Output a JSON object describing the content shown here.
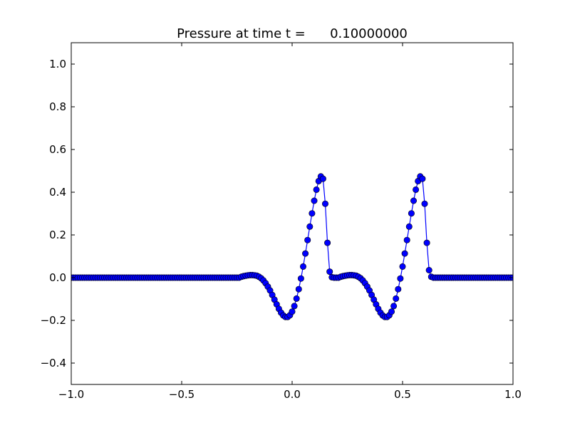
{
  "chart_data": {
    "type": "line",
    "title": "Pressure at time t =      0.10000000",
    "xlabel": "",
    "ylabel": "",
    "xlim": [
      -1.0,
      1.0
    ],
    "ylim": [
      -0.5,
      1.1
    ],
    "grid": false,
    "xticks": [
      -1.0,
      -0.5,
      0.0,
      0.5,
      1.0
    ],
    "xtick_labels": [
      "−1.0",
      "−0.5",
      "0.0",
      "0.5",
      "1.0"
    ],
    "yticks": [
      -0.4,
      -0.2,
      0.0,
      0.2,
      0.4,
      0.6,
      0.8,
      1.0
    ],
    "ytick_labels": [
      "−0.4",
      "−0.2",
      "0.0",
      "0.2",
      "0.4",
      "0.6",
      "0.8",
      "1.0"
    ],
    "series": [
      {
        "color": "#0000ff",
        "marker": "circle",
        "line_color": "#0000ff",
        "points": [
          [
            -0.23,
            0.004
          ],
          [
            -0.22,
            0.007
          ],
          [
            -0.21,
            0.009
          ],
          [
            -0.2,
            0.011
          ],
          [
            -0.19,
            0.012
          ],
          [
            -0.18,
            0.012
          ],
          [
            -0.17,
            0.011
          ],
          [
            -0.16,
            0.009
          ],
          [
            -0.15,
            0.004
          ],
          [
            -0.14,
            -0.003
          ],
          [
            -0.13,
            -0.013
          ],
          [
            -0.12,
            -0.026
          ],
          [
            -0.11,
            -0.042
          ],
          [
            -0.1,
            -0.06
          ],
          [
            -0.09,
            -0.081
          ],
          [
            -0.08,
            -0.103
          ],
          [
            -0.07,
            -0.125
          ],
          [
            -0.06,
            -0.146
          ],
          [
            -0.05,
            -0.164
          ],
          [
            -0.04,
            -0.177
          ],
          [
            -0.03,
            -0.184
          ],
          [
            -0.02,
            -0.184
          ],
          [
            -0.01,
            -0.176
          ],
          [
            0.0,
            -0.159
          ],
          [
            0.01,
            -0.133
          ],
          [
            0.02,
            -0.098
          ],
          [
            0.03,
            -0.054
          ],
          [
            0.04,
            -0.004
          ],
          [
            0.05,
            0.052
          ],
          [
            0.06,
            0.113
          ],
          [
            0.07,
            0.176
          ],
          [
            0.08,
            0.239
          ],
          [
            0.09,
            0.301
          ],
          [
            0.1,
            0.36
          ],
          [
            0.11,
            0.412
          ],
          [
            0.12,
            0.452
          ],
          [
            0.13,
            0.474
          ],
          [
            0.14,
            0.463
          ],
          [
            0.15,
            0.346
          ],
          [
            0.16,
            0.163
          ],
          [
            0.17,
            0.028
          ],
          [
            0.18,
            0.002
          ],
          [
            0.22,
            0.004
          ],
          [
            0.23,
            0.007
          ],
          [
            0.24,
            0.009
          ],
          [
            0.25,
            0.011
          ],
          [
            0.26,
            0.012
          ],
          [
            0.27,
            0.012
          ],
          [
            0.28,
            0.011
          ],
          [
            0.29,
            0.009
          ],
          [
            0.3,
            0.004
          ],
          [
            0.31,
            -0.003
          ],
          [
            0.32,
            -0.013
          ],
          [
            0.33,
            -0.026
          ],
          [
            0.34,
            -0.042
          ],
          [
            0.35,
            -0.06
          ],
          [
            0.36,
            -0.081
          ],
          [
            0.37,
            -0.103
          ],
          [
            0.38,
            -0.125
          ],
          [
            0.39,
            -0.146
          ],
          [
            0.4,
            -0.164
          ],
          [
            0.41,
            -0.177
          ],
          [
            0.42,
            -0.184
          ],
          [
            0.43,
            -0.184
          ],
          [
            0.44,
            -0.176
          ],
          [
            0.45,
            -0.159
          ],
          [
            0.46,
            -0.133
          ],
          [
            0.47,
            -0.098
          ],
          [
            0.48,
            -0.054
          ],
          [
            0.49,
            -0.004
          ],
          [
            0.5,
            0.052
          ],
          [
            0.51,
            0.113
          ],
          [
            0.52,
            0.176
          ],
          [
            0.53,
            0.239
          ],
          [
            0.54,
            0.301
          ],
          [
            0.55,
            0.36
          ],
          [
            0.56,
            0.412
          ],
          [
            0.57,
            0.452
          ],
          [
            0.58,
            0.474
          ],
          [
            0.59,
            0.463
          ],
          [
            0.6,
            0.346
          ],
          [
            0.61,
            0.163
          ],
          [
            0.62,
            0.035
          ],
          [
            0.63,
            0.004
          ]
        ]
      }
    ]
  }
}
